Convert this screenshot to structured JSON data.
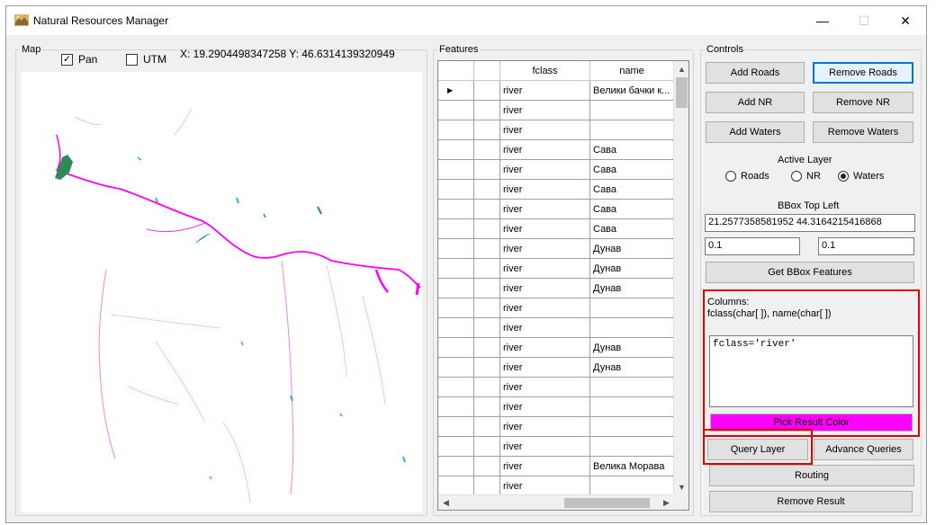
{
  "window": {
    "title": "Natural Resources Manager",
    "controls": {
      "minimize": "—",
      "maximize": "☐",
      "close": "✕"
    }
  },
  "map": {
    "group_label": "Map",
    "pan_label": "Pan",
    "pan_checked": true,
    "utm_label": "UTM",
    "utm_checked": false,
    "coords": "X: 19.2904498347258  Y: 46.6314139320949",
    "colors": {
      "query_result": "#ff00ff",
      "water": "#3fa7d6",
      "fill": "#2e8b57"
    }
  },
  "features": {
    "group_label": "Features",
    "columns": [
      "",
      "",
      "fclass",
      "name"
    ],
    "rows": [
      {
        "fclass": "river",
        "name": "Велики бачки к...",
        "current": true
      },
      {
        "fclass": "river",
        "name": ""
      },
      {
        "fclass": "river",
        "name": ""
      },
      {
        "fclass": "river",
        "name": "Сава"
      },
      {
        "fclass": "river",
        "name": "Сава"
      },
      {
        "fclass": "river",
        "name": "Сава"
      },
      {
        "fclass": "river",
        "name": "Сава"
      },
      {
        "fclass": "river",
        "name": "Сава"
      },
      {
        "fclass": "river",
        "name": "Дунав"
      },
      {
        "fclass": "river",
        "name": "Дунав"
      },
      {
        "fclass": "river",
        "name": "Дунав"
      },
      {
        "fclass": "river",
        "name": ""
      },
      {
        "fclass": "river",
        "name": ""
      },
      {
        "fclass": "river",
        "name": "Дунав"
      },
      {
        "fclass": "river",
        "name": "Дунав"
      },
      {
        "fclass": "river",
        "name": ""
      },
      {
        "fclass": "river",
        "name": ""
      },
      {
        "fclass": "river",
        "name": ""
      },
      {
        "fclass": "river",
        "name": ""
      },
      {
        "fclass": "river",
        "name": "Велика Морава"
      },
      {
        "fclass": "river",
        "name": ""
      }
    ]
  },
  "controls": {
    "group_label": "Controls",
    "add_roads": "Add Roads",
    "remove_roads": "Remove Roads",
    "add_nr": "Add NR",
    "remove_nr": "Remove NR",
    "add_waters": "Add Waters",
    "remove_waters": "Remove Waters",
    "active_layer_label": "Active Layer",
    "layers": [
      {
        "label": "Roads",
        "selected": false
      },
      {
        "label": "NR",
        "selected": false
      },
      {
        "label": "Waters",
        "selected": true
      }
    ],
    "bbox_label": "BBox Top Left",
    "bbox_top_left": "21.2577358581952  44.3164215416868",
    "bbox_width": "0.1",
    "bbox_height": "0.1",
    "get_bbox": "Get BBox Features",
    "columns_label": "Columns:",
    "columns_value": "fclass(char[ ]), name(char[ ])",
    "query_text": "fclass='river'",
    "pick_color": "Pick Result Color",
    "pick_color_value": "#ff00ff",
    "query_layer": "Query Layer",
    "advance_queries": "Advance Queries",
    "routing": "Routing",
    "remove_result": "Remove Result"
  }
}
